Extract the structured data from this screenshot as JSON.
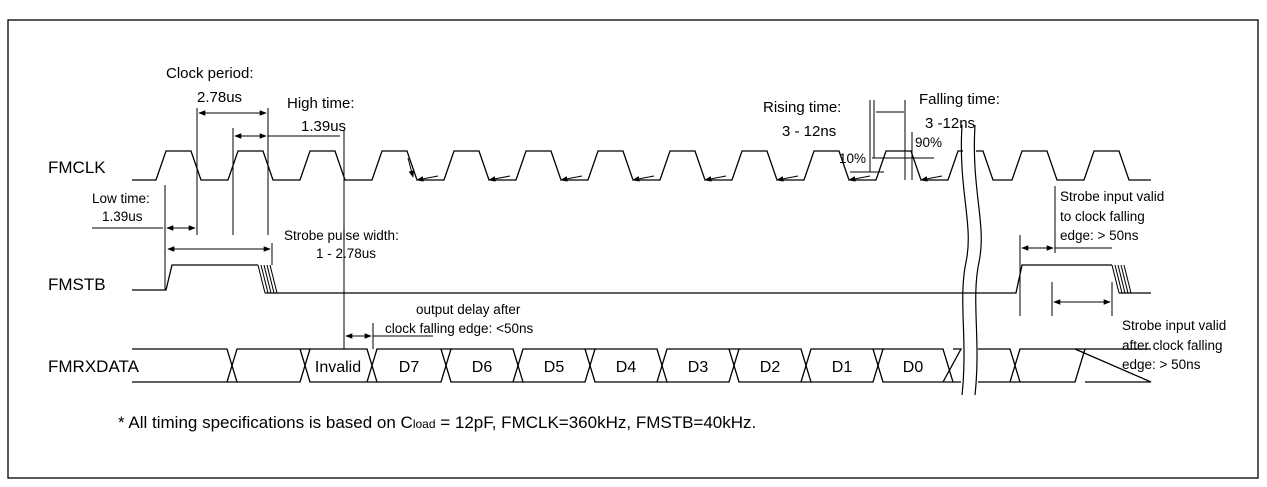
{
  "signals": {
    "clk": "FMCLK",
    "stb": "FMSTB",
    "data": "FMRXDATA"
  },
  "annotations": {
    "clock_period_label": "Clock period:",
    "clock_period_value": "2.78us",
    "high_time_label": "High time:",
    "high_time_value": "1.39us",
    "low_time_label": "Low time:",
    "low_time_value": "1.39us",
    "rising_time_label": "Rising time:",
    "rising_time_value": "3 - 12ns",
    "falling_time_label": "Falling time:",
    "falling_time_value": "3 -12ns",
    "pct_10": "10%",
    "pct_90": "90%",
    "strobe_width_label": "Strobe pulse width:",
    "strobe_width_value": "1 - 2.78us",
    "output_delay_line1": "output delay after",
    "output_delay_line2": "clock falling edge: <50ns",
    "setup_line1": "Strobe input valid",
    "setup_line2": "to clock falling",
    "setup_line3": "edge: > 50ns",
    "hold_line1": "Strobe input valid",
    "hold_line2": "after clock falling",
    "hold_line3": "edge: > 50ns"
  },
  "data_cells": [
    "Invalid",
    "D7",
    "D6",
    "D5",
    "D4",
    "D3",
    "D2",
    "D1",
    "D0"
  ],
  "footnote": {
    "prefix": "* All timing specifications is based on C",
    "subscript": "load",
    "suffix": " = 12pF, FMCLK=360kHz,  FMSTB=40kHz."
  }
}
